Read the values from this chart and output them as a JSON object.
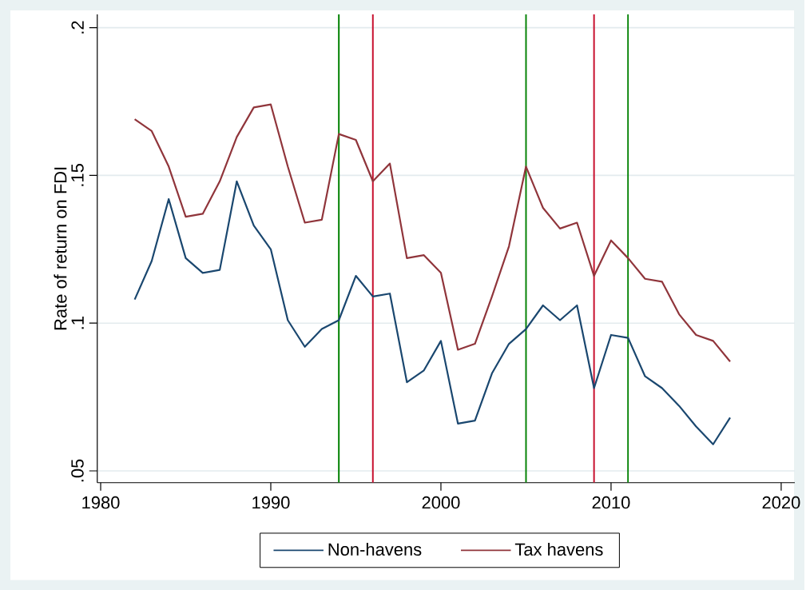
{
  "chart_data": {
    "type": "line",
    "ylabel": "Rate of return on FDI",
    "x": [
      1982,
      1983,
      1984,
      1985,
      1986,
      1987,
      1988,
      1989,
      1990,
      1991,
      1992,
      1993,
      1994,
      1995,
      1996,
      1997,
      1998,
      1999,
      2000,
      2001,
      2002,
      2003,
      2004,
      2005,
      2006,
      2007,
      2008,
      2009,
      2010,
      2011,
      2012,
      2013,
      2014,
      2015,
      2016,
      2017
    ],
    "series": [
      {
        "name": "Non-havens",
        "color": "#1a476f",
        "values": [
          0.108,
          0.121,
          0.142,
          0.122,
          0.117,
          0.118,
          0.148,
          0.133,
          0.125,
          0.101,
          0.092,
          0.098,
          0.101,
          0.116,
          0.109,
          0.11,
          0.08,
          0.084,
          0.094,
          0.066,
          0.067,
          0.083,
          0.093,
          0.098,
          0.106,
          0.101,
          0.106,
          0.078,
          0.096,
          0.095,
          0.082,
          0.078,
          0.072,
          0.065,
          0.059,
          0.068
        ]
      },
      {
        "name": "Tax havens",
        "color": "#90353b",
        "values": [
          0.169,
          0.165,
          0.153,
          0.136,
          0.137,
          0.148,
          0.163,
          0.173,
          0.174,
          0.153,
          0.134,
          0.135,
          0.164,
          0.162,
          0.148,
          0.154,
          0.122,
          0.123,
          0.117,
          0.091,
          0.093,
          0.109,
          0.126,
          0.153,
          0.139,
          0.132,
          0.134,
          0.116,
          0.128,
          0.122,
          0.115,
          0.114,
          0.103,
          0.096,
          0.094,
          0.087
        ]
      }
    ],
    "xlim": [
      1979.8,
      2020.8
    ],
    "ylim": [
      0.046,
      0.2045
    ],
    "xticks": [
      1980,
      1990,
      2000,
      2010,
      2020
    ],
    "yticks": [
      {
        "value": 0.05,
        "label": ".05"
      },
      {
        "value": 0.1,
        "label": ".1"
      },
      {
        "value": 0.15,
        "label": ".15"
      },
      {
        "value": 0.2,
        "label": ".2"
      }
    ],
    "ref_lines": [
      {
        "axis": "x",
        "value": 1994,
        "color": "#008000"
      },
      {
        "axis": "x",
        "value": 1996,
        "color": "#c8102e"
      },
      {
        "axis": "x",
        "value": 2005,
        "color": "#008000"
      },
      {
        "axis": "x",
        "value": 2009,
        "color": "#c8102e"
      },
      {
        "axis": "x",
        "value": 2011,
        "color": "#008000"
      }
    ],
    "grid": "y",
    "legend": "bottom",
    "marker": "none",
    "line_style": "solid"
  }
}
